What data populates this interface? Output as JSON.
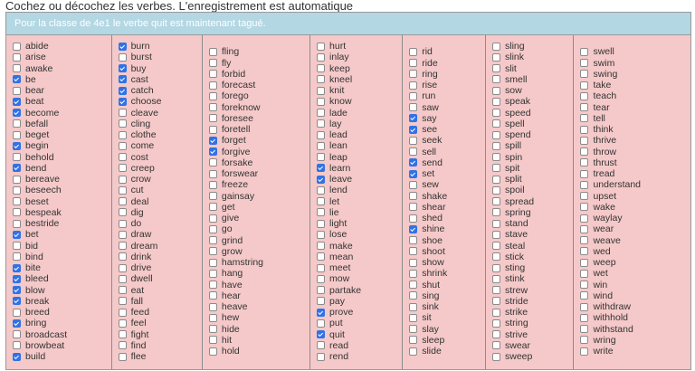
{
  "title": "Cochez ou décochez les verbes. L'enregistrement est automatique",
  "banner": "Pour la classe de 4e1 le verbe quit est maintenant tagué.",
  "colors": {
    "banner": "#b3d7e3",
    "cells": "#f5c9c9",
    "checked": "#2f73e6"
  },
  "columns": [
    {
      "verbs": [
        {
          "label": "abide",
          "checked": false
        },
        {
          "label": "arise",
          "checked": false
        },
        {
          "label": "awake",
          "checked": false
        },
        {
          "label": "be",
          "checked": true
        },
        {
          "label": "bear",
          "checked": false
        },
        {
          "label": "beat",
          "checked": true
        },
        {
          "label": "become",
          "checked": true
        },
        {
          "label": "befall",
          "checked": false
        },
        {
          "label": "beget",
          "checked": false
        },
        {
          "label": "begin",
          "checked": true
        },
        {
          "label": "behold",
          "checked": false
        },
        {
          "label": "bend",
          "checked": true
        },
        {
          "label": "bereave",
          "checked": false
        },
        {
          "label": "beseech",
          "checked": false
        },
        {
          "label": "beset",
          "checked": false
        },
        {
          "label": "bespeak",
          "checked": false
        },
        {
          "label": "bestride",
          "checked": false
        },
        {
          "label": "bet",
          "checked": true
        },
        {
          "label": "bid",
          "checked": false
        },
        {
          "label": "bind",
          "checked": false
        },
        {
          "label": "bite",
          "checked": true
        },
        {
          "label": "bleed",
          "checked": true
        },
        {
          "label": "blow",
          "checked": true
        },
        {
          "label": "break",
          "checked": true
        },
        {
          "label": "breed",
          "checked": false
        },
        {
          "label": "bring",
          "checked": true
        },
        {
          "label": "broadcast",
          "checked": false
        },
        {
          "label": "browbeat",
          "checked": false
        },
        {
          "label": "build",
          "checked": true
        }
      ]
    },
    {
      "verbs": [
        {
          "label": "burn",
          "checked": true
        },
        {
          "label": "burst",
          "checked": false
        },
        {
          "label": "buy",
          "checked": true
        },
        {
          "label": "cast",
          "checked": true
        },
        {
          "label": "catch",
          "checked": true
        },
        {
          "label": "choose",
          "checked": true
        },
        {
          "label": "cleave",
          "checked": false
        },
        {
          "label": "cling",
          "checked": false
        },
        {
          "label": "clothe",
          "checked": false
        },
        {
          "label": "come",
          "checked": false
        },
        {
          "label": "cost",
          "checked": false
        },
        {
          "label": "creep",
          "checked": false
        },
        {
          "label": "crow",
          "checked": false
        },
        {
          "label": "cut",
          "checked": false
        },
        {
          "label": "deal",
          "checked": false
        },
        {
          "label": "dig",
          "checked": false
        },
        {
          "label": "do",
          "checked": false
        },
        {
          "label": "draw",
          "checked": false
        },
        {
          "label": "dream",
          "checked": false
        },
        {
          "label": "drink",
          "checked": false
        },
        {
          "label": "drive",
          "checked": false
        },
        {
          "label": "dwell",
          "checked": false
        },
        {
          "label": "eat",
          "checked": false
        },
        {
          "label": "fall",
          "checked": false
        },
        {
          "label": "feed",
          "checked": false
        },
        {
          "label": "feel",
          "checked": false
        },
        {
          "label": "fight",
          "checked": false
        },
        {
          "label": "find",
          "checked": false
        },
        {
          "label": "flee",
          "checked": false
        }
      ]
    },
    {
      "verbs": [
        {
          "label": "fling",
          "checked": false
        },
        {
          "label": "fly",
          "checked": false
        },
        {
          "label": "forbid",
          "checked": false
        },
        {
          "label": "forecast",
          "checked": false
        },
        {
          "label": "forego",
          "checked": false
        },
        {
          "label": "foreknow",
          "checked": false
        },
        {
          "label": "foresee",
          "checked": false
        },
        {
          "label": "foretell",
          "checked": false
        },
        {
          "label": "forget",
          "checked": true
        },
        {
          "label": "forgive",
          "checked": true
        },
        {
          "label": "forsake",
          "checked": false
        },
        {
          "label": "forswear",
          "checked": false
        },
        {
          "label": "freeze",
          "checked": false
        },
        {
          "label": "gainsay",
          "checked": false
        },
        {
          "label": "get",
          "checked": false
        },
        {
          "label": "give",
          "checked": false
        },
        {
          "label": "go",
          "checked": false
        },
        {
          "label": "grind",
          "checked": false
        },
        {
          "label": "grow",
          "checked": false
        },
        {
          "label": "hamstring",
          "checked": false
        },
        {
          "label": "hang",
          "checked": false
        },
        {
          "label": "have",
          "checked": false
        },
        {
          "label": "hear",
          "checked": false
        },
        {
          "label": "heave",
          "checked": false
        },
        {
          "label": "hew",
          "checked": false
        },
        {
          "label": "hide",
          "checked": false
        },
        {
          "label": "hit",
          "checked": false
        },
        {
          "label": "hold",
          "checked": false
        }
      ]
    },
    {
      "verbs": [
        {
          "label": "hurt",
          "checked": false
        },
        {
          "label": "inlay",
          "checked": false
        },
        {
          "label": "keep",
          "checked": false
        },
        {
          "label": "kneel",
          "checked": false
        },
        {
          "label": "knit",
          "checked": false
        },
        {
          "label": "know",
          "checked": false
        },
        {
          "label": "lade",
          "checked": false
        },
        {
          "label": "lay",
          "checked": false
        },
        {
          "label": "lead",
          "checked": false
        },
        {
          "label": "lean",
          "checked": false
        },
        {
          "label": "leap",
          "checked": false
        },
        {
          "label": "learn",
          "checked": true
        },
        {
          "label": "leave",
          "checked": true
        },
        {
          "label": "lend",
          "checked": false
        },
        {
          "label": "let",
          "checked": false
        },
        {
          "label": "lie",
          "checked": false
        },
        {
          "label": "light",
          "checked": false
        },
        {
          "label": "lose",
          "checked": false
        },
        {
          "label": "make",
          "checked": false
        },
        {
          "label": "mean",
          "checked": false
        },
        {
          "label": "meet",
          "checked": false
        },
        {
          "label": "mow",
          "checked": false
        },
        {
          "label": "partake",
          "checked": false
        },
        {
          "label": "pay",
          "checked": false
        },
        {
          "label": "prove",
          "checked": true
        },
        {
          "label": "put",
          "checked": false
        },
        {
          "label": "quit",
          "checked": true
        },
        {
          "label": "read",
          "checked": false
        },
        {
          "label": "rend",
          "checked": false
        }
      ]
    },
    {
      "verbs": [
        {
          "label": "rid",
          "checked": false
        },
        {
          "label": "ride",
          "checked": false
        },
        {
          "label": "ring",
          "checked": false
        },
        {
          "label": "rise",
          "checked": false
        },
        {
          "label": "run",
          "checked": false
        },
        {
          "label": "saw",
          "checked": false
        },
        {
          "label": "say",
          "checked": true
        },
        {
          "label": "see",
          "checked": true
        },
        {
          "label": "seek",
          "checked": false
        },
        {
          "label": "sell",
          "checked": false
        },
        {
          "label": "send",
          "checked": true
        },
        {
          "label": "set",
          "checked": true
        },
        {
          "label": "sew",
          "checked": false
        },
        {
          "label": "shake",
          "checked": false
        },
        {
          "label": "shear",
          "checked": false
        },
        {
          "label": "shed",
          "checked": false
        },
        {
          "label": "shine",
          "checked": true
        },
        {
          "label": "shoe",
          "checked": false
        },
        {
          "label": "shoot",
          "checked": false
        },
        {
          "label": "show",
          "checked": false
        },
        {
          "label": "shrink",
          "checked": false
        },
        {
          "label": "shut",
          "checked": false
        },
        {
          "label": "sing",
          "checked": false
        },
        {
          "label": "sink",
          "checked": false
        },
        {
          "label": "sit",
          "checked": false
        },
        {
          "label": "slay",
          "checked": false
        },
        {
          "label": "sleep",
          "checked": false
        },
        {
          "label": "slide",
          "checked": false
        }
      ]
    },
    {
      "verbs": [
        {
          "label": "sling",
          "checked": false
        },
        {
          "label": "slink",
          "checked": false
        },
        {
          "label": "slit",
          "checked": false
        },
        {
          "label": "smell",
          "checked": false
        },
        {
          "label": "sow",
          "checked": false
        },
        {
          "label": "speak",
          "checked": false
        },
        {
          "label": "speed",
          "checked": false
        },
        {
          "label": "spell",
          "checked": false
        },
        {
          "label": "spend",
          "checked": false
        },
        {
          "label": "spill",
          "checked": false
        },
        {
          "label": "spin",
          "checked": false
        },
        {
          "label": "spit",
          "checked": false
        },
        {
          "label": "split",
          "checked": false
        },
        {
          "label": "spoil",
          "checked": false
        },
        {
          "label": "spread",
          "checked": false
        },
        {
          "label": "spring",
          "checked": false
        },
        {
          "label": "stand",
          "checked": false
        },
        {
          "label": "stave",
          "checked": false
        },
        {
          "label": "steal",
          "checked": false
        },
        {
          "label": "stick",
          "checked": false
        },
        {
          "label": "sting",
          "checked": false
        },
        {
          "label": "stink",
          "checked": false
        },
        {
          "label": "strew",
          "checked": false
        },
        {
          "label": "stride",
          "checked": false
        },
        {
          "label": "strike",
          "checked": false
        },
        {
          "label": "string",
          "checked": false
        },
        {
          "label": "strive",
          "checked": false
        },
        {
          "label": "swear",
          "checked": false
        },
        {
          "label": "sweep",
          "checked": false
        }
      ]
    },
    {
      "verbs": [
        {
          "label": "swell",
          "checked": false
        },
        {
          "label": "swim",
          "checked": false
        },
        {
          "label": "swing",
          "checked": false
        },
        {
          "label": "take",
          "checked": false
        },
        {
          "label": "teach",
          "checked": false
        },
        {
          "label": "tear",
          "checked": false
        },
        {
          "label": "tell",
          "checked": false
        },
        {
          "label": "think",
          "checked": false
        },
        {
          "label": "thrive",
          "checked": false
        },
        {
          "label": "throw",
          "checked": false
        },
        {
          "label": "thrust",
          "checked": false
        },
        {
          "label": "tread",
          "checked": false
        },
        {
          "label": "understand",
          "checked": false
        },
        {
          "label": "upset",
          "checked": false
        },
        {
          "label": "wake",
          "checked": false
        },
        {
          "label": "waylay",
          "checked": false
        },
        {
          "label": "wear",
          "checked": false
        },
        {
          "label": "weave",
          "checked": false
        },
        {
          "label": "wed",
          "checked": false
        },
        {
          "label": "weep",
          "checked": false
        },
        {
          "label": "wet",
          "checked": false
        },
        {
          "label": "win",
          "checked": false
        },
        {
          "label": "wind",
          "checked": false
        },
        {
          "label": "withdraw",
          "checked": false
        },
        {
          "label": "withhold",
          "checked": false
        },
        {
          "label": "withstand",
          "checked": false
        },
        {
          "label": "wring",
          "checked": false
        },
        {
          "label": "write",
          "checked": false
        }
      ]
    }
  ]
}
